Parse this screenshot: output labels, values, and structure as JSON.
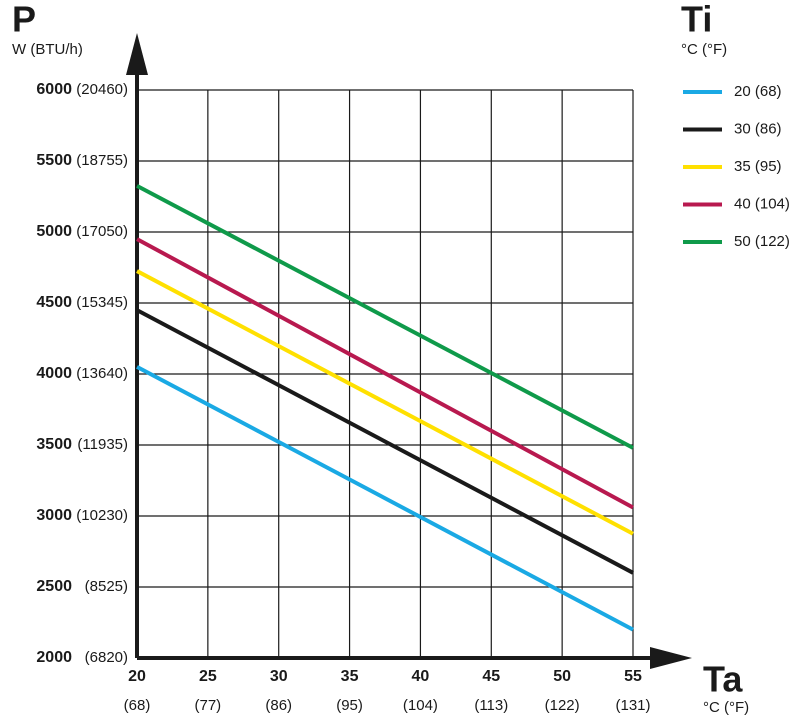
{
  "chart_data": {
    "type": "line",
    "y_label": "P",
    "y_unit": "W (BTU/h)",
    "x_label": "Ta",
    "x_unit": "°C (°F)",
    "legend_title": "Ti",
    "legend_unit": "°C (°F)",
    "x": [
      20,
      55
    ],
    "series": [
      {
        "name": "20 (68)",
        "color": "#1aa9e4",
        "values": [
          4050,
          2200
        ]
      },
      {
        "name": "30 (86)",
        "color": "#1a1a1a",
        "values": [
          4450,
          2600
        ]
      },
      {
        "name": "35 (95)",
        "color": "#ffe000",
        "values": [
          4725,
          2875
        ]
      },
      {
        "name": "40 (104)",
        "color": "#b8194f",
        "values": [
          4950,
          3060
        ]
      },
      {
        "name": "50 (122)",
        "color": "#0f9a4a",
        "values": [
          5325,
          3480
        ]
      }
    ],
    "xlim": [
      20,
      55
    ],
    "xticks": [
      20,
      25,
      30,
      35,
      40,
      45,
      50,
      55
    ],
    "xtick_secondary_labels": [
      "(68)",
      "(77)",
      "(86)",
      "(95)",
      "(104)",
      "(113)",
      "(122)",
      "(131)"
    ],
    "ylim": [
      2000,
      6000
    ],
    "yticks": [
      2000,
      2500,
      3000,
      3500,
      4000,
      4500,
      5000,
      5500,
      6000
    ],
    "ytick_secondary_labels": [
      "(6820)",
      "(8525)",
      "(10230)",
      "(11935)",
      "(13640)",
      "(15345)",
      "(17050)",
      "(18755)",
      "(20460)"
    ],
    "grid": true,
    "legend_position": "right"
  }
}
